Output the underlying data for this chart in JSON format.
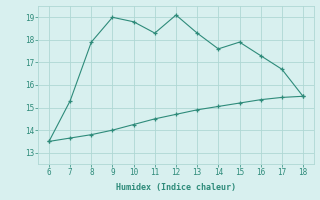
{
  "xlabel": "Humidex (Indice chaleur)",
  "line1_x": [
    6,
    7,
    8,
    9,
    10,
    11,
    12,
    13,
    14,
    15,
    16,
    17,
    18
  ],
  "line1_y": [
    13.5,
    15.3,
    17.9,
    19.0,
    18.8,
    18.3,
    19.1,
    18.3,
    17.6,
    17.9,
    17.3,
    16.7,
    15.5
  ],
  "line2_x": [
    6,
    7,
    8,
    9,
    10,
    11,
    12,
    13,
    14,
    15,
    16,
    17,
    18
  ],
  "line2_y": [
    13.5,
    13.65,
    13.8,
    14.0,
    14.25,
    14.5,
    14.7,
    14.9,
    15.05,
    15.2,
    15.35,
    15.45,
    15.5
  ],
  "line_color": "#2e8b7a",
  "bg_color": "#d8f0ef",
  "grid_color": "#afd8d4",
  "xlim": [
    5.5,
    18.5
  ],
  "ylim": [
    12.5,
    19.5
  ],
  "xticks": [
    6,
    7,
    8,
    9,
    10,
    11,
    12,
    13,
    14,
    15,
    16,
    17,
    18
  ],
  "yticks": [
    13,
    14,
    15,
    16,
    17,
    18,
    19
  ]
}
